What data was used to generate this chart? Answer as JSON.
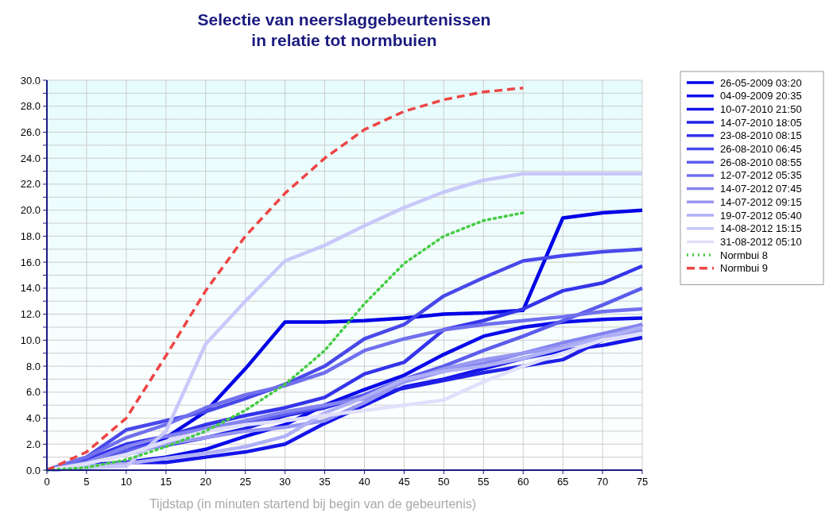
{
  "chart_data": {
    "type": "line",
    "title": "Selectie van neerslaggebeurtenissen\nin relatie tot normbuien",
    "xlabel": "Tijdstap (in minuten startend bij begin van de gebeurtenis)",
    "x": [
      0,
      5,
      10,
      15,
      20,
      25,
      30,
      35,
      40,
      45,
      50,
      55,
      60,
      65,
      70,
      75
    ],
    "xlim": [
      0,
      75
    ],
    "xticks": [
      0,
      5,
      10,
      15,
      20,
      25,
      30,
      35,
      40,
      45,
      50,
      55,
      60,
      65,
      70,
      75
    ],
    "ylim": [
      0,
      30
    ],
    "yticks": [
      {
        "value": 0,
        "label": "0.0"
      },
      {
        "value": 1,
        "label": null
      },
      {
        "value": 2,
        "label": "2.0"
      },
      {
        "value": 3,
        "label": null
      },
      {
        "value": 4,
        "label": "4.0"
      },
      {
        "value": 5,
        "label": null
      },
      {
        "value": 6,
        "label": "6.0"
      },
      {
        "value": 7,
        "label": null
      },
      {
        "value": 8,
        "label": "8.0"
      },
      {
        "value": 9,
        "label": null
      },
      {
        "value": 10,
        "label": "10.0"
      },
      {
        "value": 11,
        "label": null
      },
      {
        "value": 12,
        "label": "12.0"
      },
      {
        "value": 13,
        "label": null
      },
      {
        "value": 14,
        "label": "14.0"
      },
      {
        "value": 15,
        "label": null
      },
      {
        "value": 16,
        "label": "16.0"
      },
      {
        "value": 17,
        "label": null
      },
      {
        "value": 18,
        "label": "18.0"
      },
      {
        "value": 19,
        "label": null
      },
      {
        "value": 20,
        "label": "20.0"
      },
      {
        "value": 21,
        "label": null
      },
      {
        "value": 22,
        "label": "22.0"
      },
      {
        "value": 23,
        "label": null
      },
      {
        "value": 24,
        "label": "24.0"
      },
      {
        "value": 25,
        "label": null
      },
      {
        "value": 26,
        "label": "26.0"
      },
      {
        "value": 27,
        "label": null
      },
      {
        "value": 28,
        "label": "28.0"
      },
      {
        "value": 29,
        "label": null
      },
      {
        "value": 30,
        "label": "30.0"
      }
    ],
    "grid": true,
    "legend": "right",
    "marker": "none",
    "series": [
      {
        "name": "26-05-2009 03:20",
        "color": "#0000e6",
        "values": [
          0,
          0.7,
          1.5,
          2.5,
          4.5,
          7.8,
          11.4,
          11.4,
          11.5,
          11.7,
          12.0,
          12.1,
          12.3,
          19.4,
          19.8,
          20.0
        ]
      },
      {
        "name": "04-09-2009 20:35",
        "color": "#0a0aea",
        "values": [
          0,
          0.4,
          0.6,
          1.0,
          1.6,
          2.6,
          3.5,
          5.0,
          6.2,
          7.3,
          8.9,
          10.3,
          11.0,
          11.4,
          11.6,
          11.7
        ]
      },
      {
        "name": "10-07-2010 21:50",
        "color": "#1515ea",
        "values": [
          0,
          0.2,
          0.6,
          0.6,
          1.0,
          1.4,
          2.0,
          3.6,
          5.0,
          6.4,
          7.0,
          7.8,
          8.6,
          9.2,
          9.6,
          10.2
        ]
      },
      {
        "name": "14-07-2010 18:05",
        "color": "#2020e8",
        "values": [
          0,
          0.5,
          1.5,
          1.9,
          2.5,
          3.2,
          4.2,
          4.8,
          5.7,
          6.3,
          6.9,
          7.5,
          8.0,
          8.5,
          10.0,
          11.2
        ]
      },
      {
        "name": "23-08-2010 08:15",
        "color": "#3434ea",
        "values": [
          0,
          0.8,
          2.0,
          2.6,
          3.5,
          4.2,
          4.8,
          5.6,
          7.4,
          8.3,
          10.8,
          11.5,
          12.4,
          13.8,
          14.4,
          15.7
        ]
      },
      {
        "name": "26-08-2010 06:45",
        "color": "#4848ea",
        "values": [
          0,
          1.0,
          3.1,
          3.8,
          4.5,
          5.5,
          6.6,
          8.0,
          10.1,
          11.2,
          13.4,
          14.8,
          16.1,
          16.5,
          16.8,
          17.0
        ]
      },
      {
        "name": "26-08-2010 08:55",
        "color": "#5c5cec",
        "values": [
          0,
          0.6,
          1.5,
          2.2,
          3.0,
          3.6,
          4.3,
          4.9,
          5.8,
          7.0,
          8.0,
          9.2,
          10.3,
          11.5,
          12.7,
          14.0
        ]
      },
      {
        "name": "12-07-2012 05:35",
        "color": "#7070ee",
        "values": [
          0,
          1.0,
          2.5,
          3.5,
          4.8,
          5.8,
          6.5,
          7.5,
          9.2,
          10.1,
          10.8,
          11.2,
          11.5,
          11.8,
          12.2,
          12.4
        ]
      },
      {
        "name": "14-07-2012 07:45",
        "color": "#8484f0",
        "values": [
          0,
          0.6,
          1.8,
          2.6,
          3.2,
          3.8,
          4.5,
          5.0,
          5.5,
          6.8,
          7.6,
          8.2,
          9.0,
          9.8,
          10.5,
          11.2
        ]
      },
      {
        "name": "14-07-2012 09:15",
        "color": "#9898f2",
        "values": [
          0,
          0.5,
          1.2,
          2.0,
          2.5,
          3.0,
          3.3,
          3.8,
          5.2,
          6.8,
          7.8,
          8.5,
          9.0,
          9.5,
          10.2,
          10.8
        ]
      },
      {
        "name": "19-07-2012 05:40",
        "color": "#b0b0f6",
        "values": [
          0,
          0.3,
          0.5,
          0.9,
          1.3,
          1.8,
          2.6,
          4.4,
          5.6,
          7.0,
          7.6,
          8.0,
          8.6,
          9.4,
          10.2,
          11.0
        ]
      },
      {
        "name": "14-08-2012 15:15",
        "color": "#c8c8fa",
        "values": [
          0,
          0.2,
          0.3,
          3.0,
          9.7,
          13.0,
          16.1,
          17.3,
          18.8,
          20.2,
          21.4,
          22.3,
          22.8,
          22.8,
          22.8,
          22.8
        ]
      },
      {
        "name": "31-08-2012 05:10",
        "color": "#e0e0fc",
        "values": [
          0,
          0.5,
          1.2,
          2.2,
          3.0,
          3.5,
          3.8,
          4.2,
          4.6,
          5.0,
          5.4,
          6.8,
          8.0,
          9.0,
          10.0,
          10.5
        ]
      },
      {
        "name": "Normbui 8",
        "color": "#44cc44",
        "line_style": "dotted",
        "x": [
          0,
          5,
          10,
          15,
          20,
          25,
          30,
          35,
          40,
          45,
          50,
          55,
          60
        ],
        "values": [
          0,
          0.2,
          0.8,
          1.8,
          3.0,
          4.6,
          6.6,
          9.2,
          12.8,
          15.9,
          18.0,
          19.2,
          19.8
        ]
      },
      {
        "name": "Normbui 9",
        "color": "#ee4444",
        "line_style": "dashed",
        "x": [
          0,
          5,
          10,
          15,
          20,
          25,
          30,
          35,
          40,
          45,
          50,
          55,
          60
        ],
        "values": [
          0,
          1.4,
          4.0,
          8.8,
          13.8,
          18.0,
          21.3,
          24.0,
          26.2,
          27.6,
          28.5,
          29.1,
          29.4
        ]
      }
    ]
  }
}
